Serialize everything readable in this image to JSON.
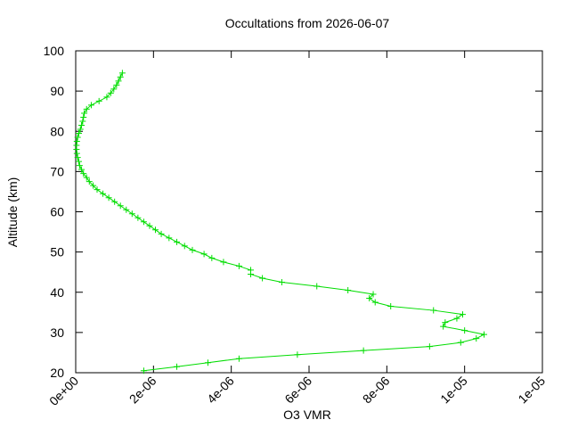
{
  "chart_data": {
    "type": "line",
    "title": "Occultations from 2026-06-07",
    "x_label": "O3 VMR",
    "y_label": "Altitude (km)",
    "color": "#00dd00",
    "marker": "+",
    "xlim": [
      0,
      1.2e-05
    ],
    "xticks": [
      {
        "value": 0,
        "label": "0e+00"
      },
      {
        "value": 2e-06,
        "label": "2e-06"
      },
      {
        "value": 4e-06,
        "label": "4e-06"
      },
      {
        "value": 6e-06,
        "label": "6e-06"
      },
      {
        "value": 8e-06,
        "label": "8e-06"
      },
      {
        "value": 1e-05,
        "label": "1e-05"
      },
      {
        "value": 1.2e-05,
        "label": "1e-05"
      }
    ],
    "ylim": [
      20,
      100
    ],
    "yticks": [
      20,
      30,
      40,
      50,
      60,
      70,
      80,
      90,
      100
    ],
    "x": [
      1.75e-06,
      2.6e-06,
      3.4e-06,
      4.2e-06,
      5.7e-06,
      7.4e-06,
      9.1e-06,
      9.9e-06,
      1.03e-05,
      1.05e-05,
      1e-05,
      9.45e-06,
      9.5e-06,
      9.8e-06,
      9.95e-06,
      9.2e-06,
      8.1e-06,
      7.7e-06,
      7.55e-06,
      7.65e-06,
      7e-06,
      6.2e-06,
      5.3e-06,
      4.8e-06,
      4.5e-06,
      4.5e-06,
      4.2e-06,
      3.8e-06,
      3.5e-06,
      3.3e-06,
      3e-06,
      2.8e-06,
      2.6e-06,
      2.4e-06,
      2.2e-06,
      2.05e-06,
      1.9e-06,
      1.75e-06,
      1.6e-06,
      1.45e-06,
      1.3e-06,
      1.15e-06,
      1e-06,
      8.5e-07,
      7e-07,
      5.5e-07,
      4.5e-07,
      3.5e-07,
      2.8e-07,
      2e-07,
      1.5e-07,
      1e-07,
      8e-08,
      5e-08,
      3e-08,
      2e-08,
      2e-08,
      3e-08,
      5e-08,
      8e-08,
      1.2e-07,
      1.5e-07,
      1.8e-07,
      2e-07,
      2.2e-07,
      2.8e-07,
      4e-07,
      6e-07,
      8e-07,
      9e-07,
      9.8e-07,
      1.05e-06,
      1.1e-06,
      1.15e-06,
      1.2e-06
    ],
    "values": [
      20.5,
      21.5,
      22.5,
      23.5,
      24.5,
      25.5,
      26.5,
      27.5,
      28.5,
      29.5,
      30.5,
      31.5,
      32.5,
      33.5,
      34.5,
      35.5,
      36.5,
      37.5,
      38.5,
      39.5,
      40.5,
      41.5,
      42.5,
      43.5,
      44.5,
      45.5,
      46.5,
      47.5,
      48.5,
      49.5,
      50.5,
      51.5,
      52.5,
      53.5,
      54.5,
      55.5,
      56.5,
      57.5,
      58.5,
      59.5,
      60.5,
      61.5,
      62.5,
      63.5,
      64.5,
      65.5,
      66.5,
      67.5,
      68.5,
      69.5,
      70.5,
      71.5,
      72.5,
      73.5,
      74.5,
      75.5,
      76.5,
      77.5,
      78.5,
      79.5,
      80.5,
      81.5,
      82.5,
      83.5,
      84.5,
      85.5,
      86.5,
      87.5,
      88.5,
      89.5,
      90.5,
      91.5,
      92.5,
      93.5,
      94.5
    ]
  }
}
